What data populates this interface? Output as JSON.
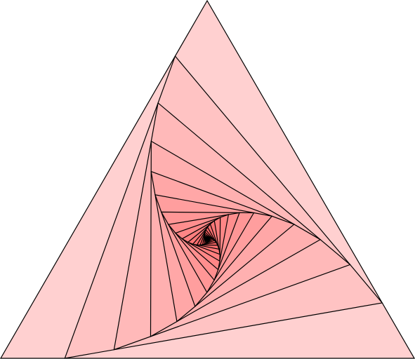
{
  "figure": {
    "kind": "nested-rotating-triangles",
    "levels": 28,
    "step_fraction": 0.155,
    "stroke_color": "#000000",
    "fill_start_color": "#ffd0d0",
    "fill_end_color": "#ff0000"
  }
}
